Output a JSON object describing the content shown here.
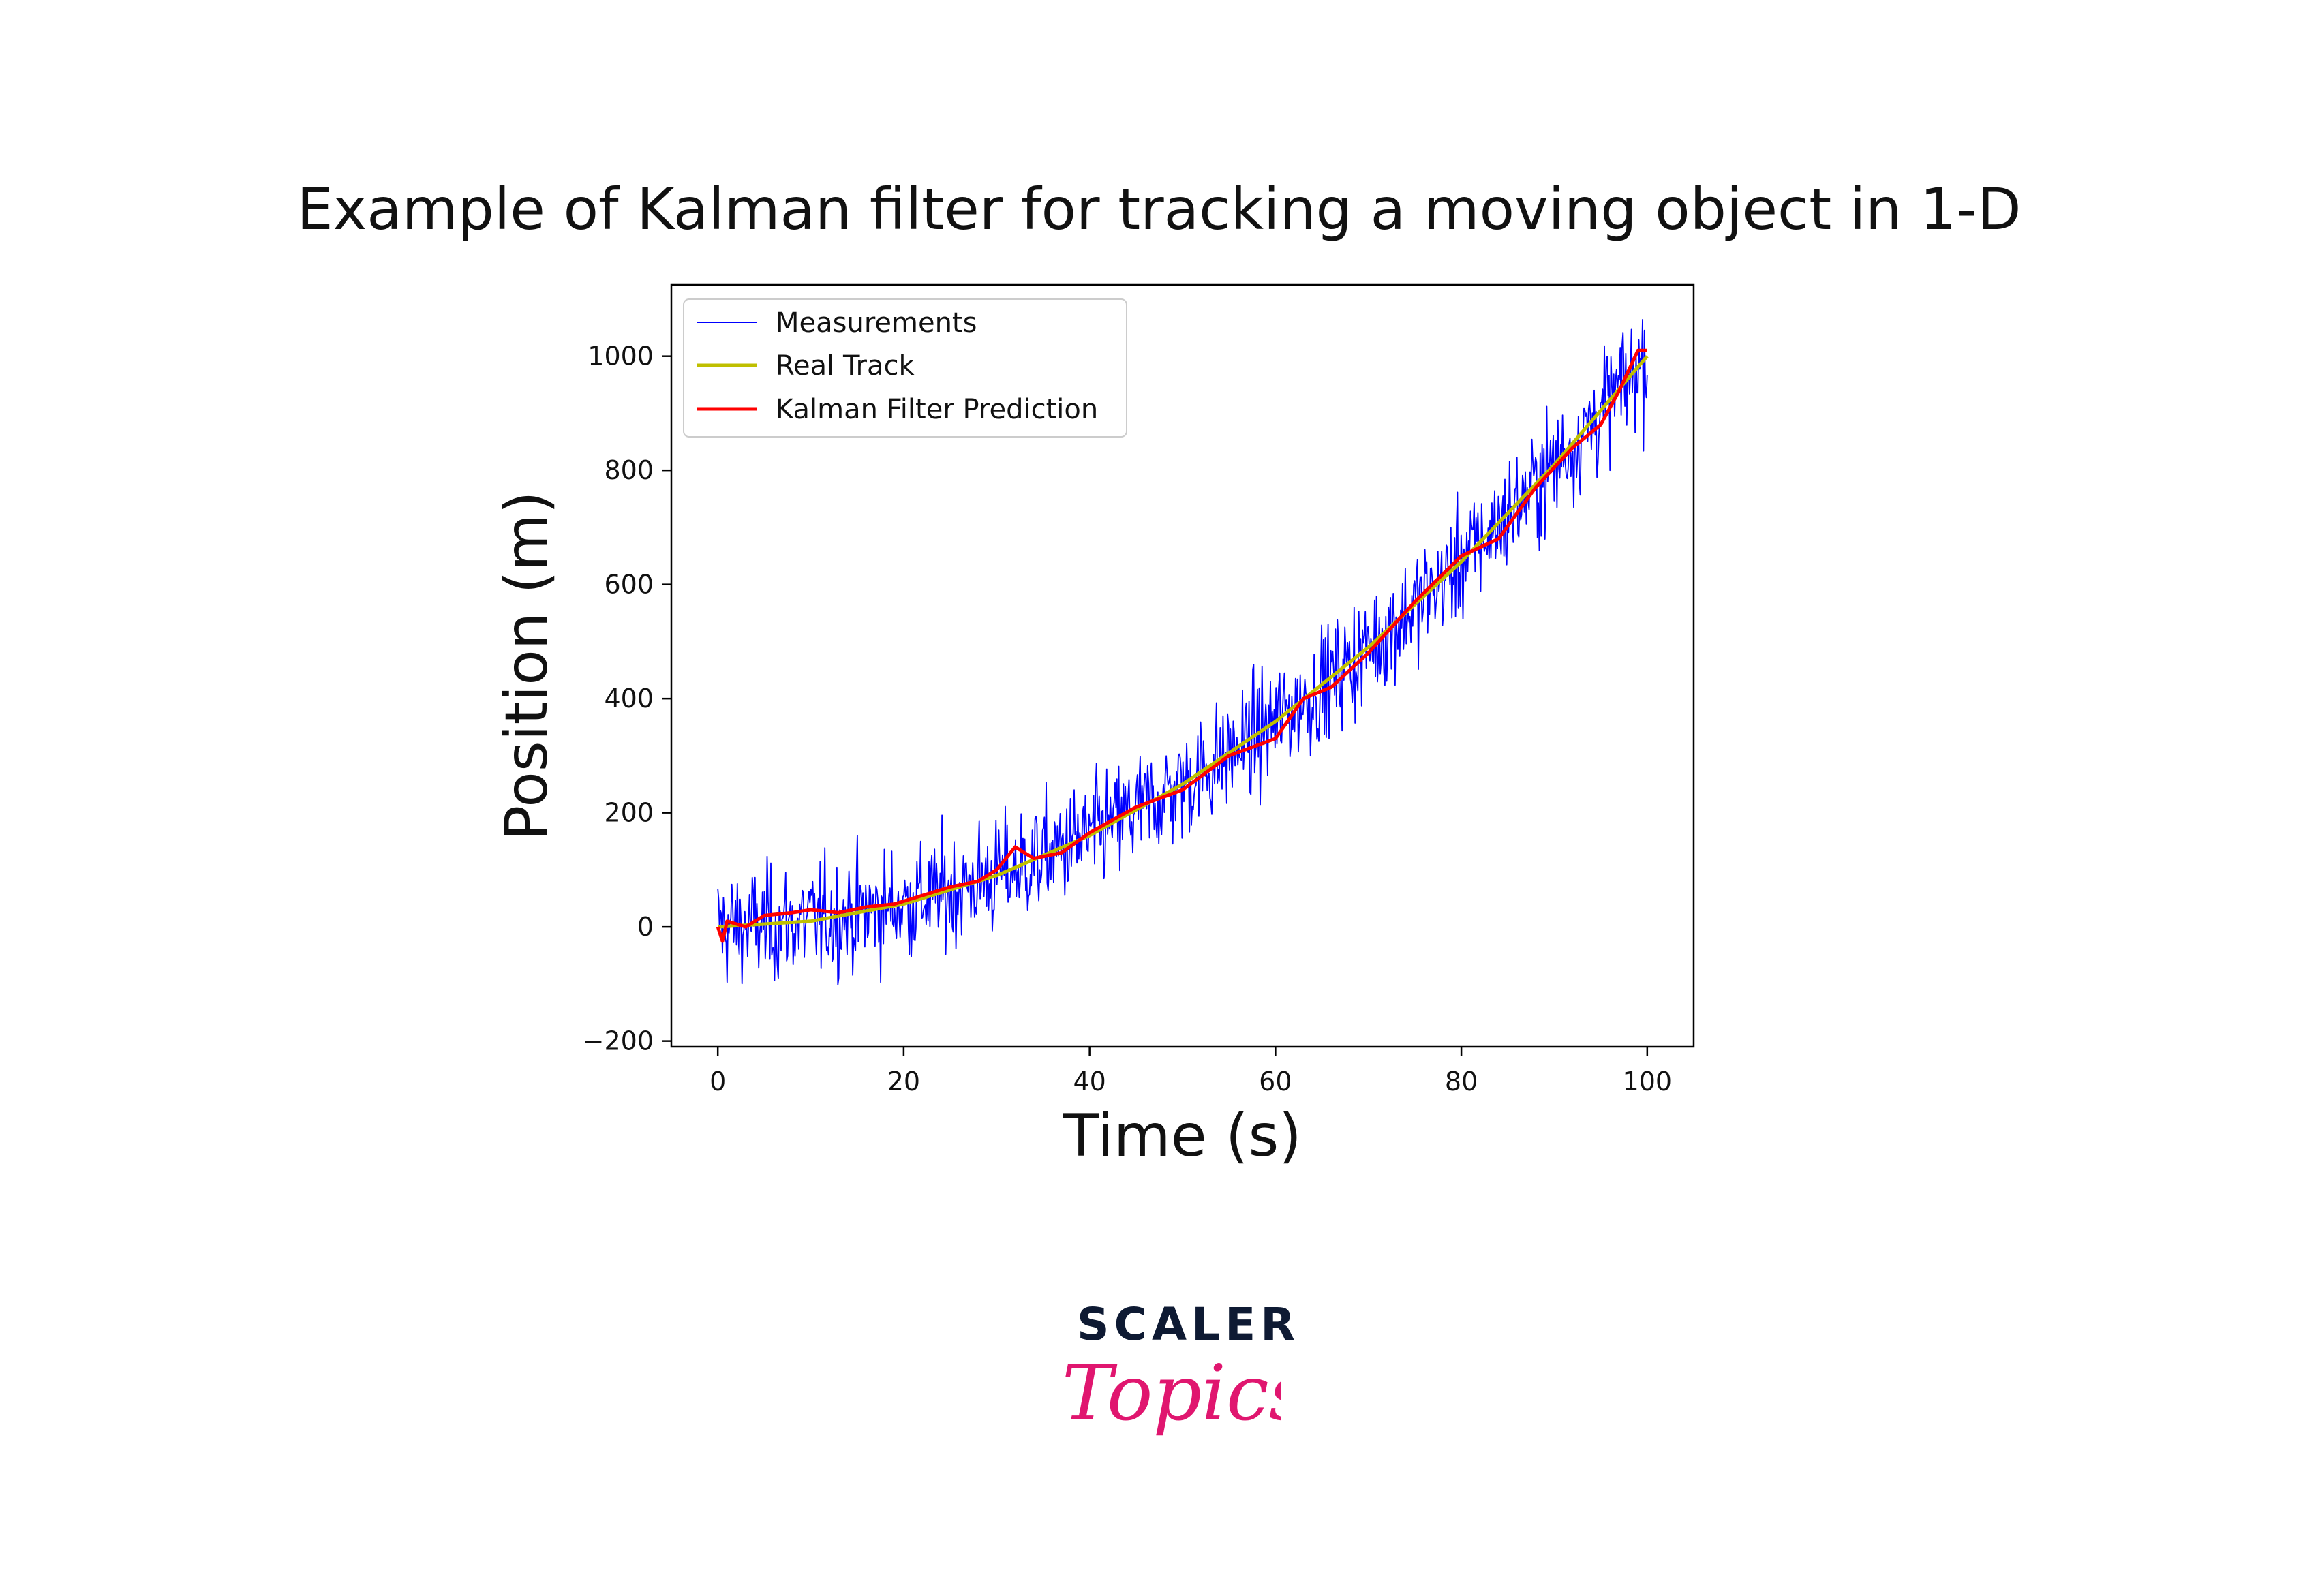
{
  "chart_data": {
    "type": "line",
    "title": "Example of Kalman filter for tracking a moving object in 1-D",
    "xlabel": "Time (s)",
    "ylabel": "Position (m)",
    "xlim": [
      -5,
      105
    ],
    "ylim": [
      -210,
      1125
    ],
    "x_ticks": [
      0,
      20,
      40,
      60,
      80,
      100
    ],
    "x_tick_labels": [
      "0",
      "20",
      "40",
      "60",
      "80",
      "100"
    ],
    "y_ticks": [
      -200,
      0,
      200,
      400,
      600,
      800,
      1000
    ],
    "y_tick_labels": [
      "−200",
      "0",
      "200",
      "400",
      "600",
      "800",
      "1000"
    ],
    "legend_position": "top-left",
    "series": [
      {
        "name": "Measurements",
        "color": "#0000ff",
        "style": "thin-noisy",
        "x_start": 0,
        "x_end": 100,
        "n_points": 1000,
        "trend": "0.1*t^2 - 0.5*t + 5 approx",
        "noise_std": 50,
        "y_min_observed": -150,
        "y_max_observed": 1065
      },
      {
        "name": "Real Track",
        "color": "#bfbf00",
        "x": [
          0,
          10,
          20,
          30,
          40,
          50,
          60,
          70,
          80,
          90,
          100
        ],
        "y": [
          0,
          10,
          40,
          90,
          160,
          250,
          360,
          490,
          640,
          810,
          1000
        ]
      },
      {
        "name": "Kalman Filter Prediction",
        "color": "#ff0000",
        "x": [
          0,
          0.5,
          1,
          2,
          3,
          5,
          8,
          10,
          13,
          16,
          19,
          22,
          25,
          28,
          30,
          32,
          34,
          37,
          40,
          45,
          50,
          55,
          60,
          63,
          66,
          70,
          75,
          80,
          84,
          88,
          92,
          95,
          97,
          99,
          100
        ],
        "y": [
          0,
          -25,
          10,
          5,
          0,
          20,
          25,
          30,
          25,
          35,
          40,
          55,
          70,
          80,
          100,
          140,
          120,
          130,
          165,
          210,
          240,
          300,
          330,
          400,
          420,
          480,
          570,
          650,
          680,
          770,
          840,
          880,
          940,
          1010,
          1010
        ]
      }
    ]
  },
  "logo": {
    "top_text": "SCALER",
    "bottom_text": "Topics",
    "top_color": "#0e1a33",
    "bottom_color": "#e0166f"
  }
}
